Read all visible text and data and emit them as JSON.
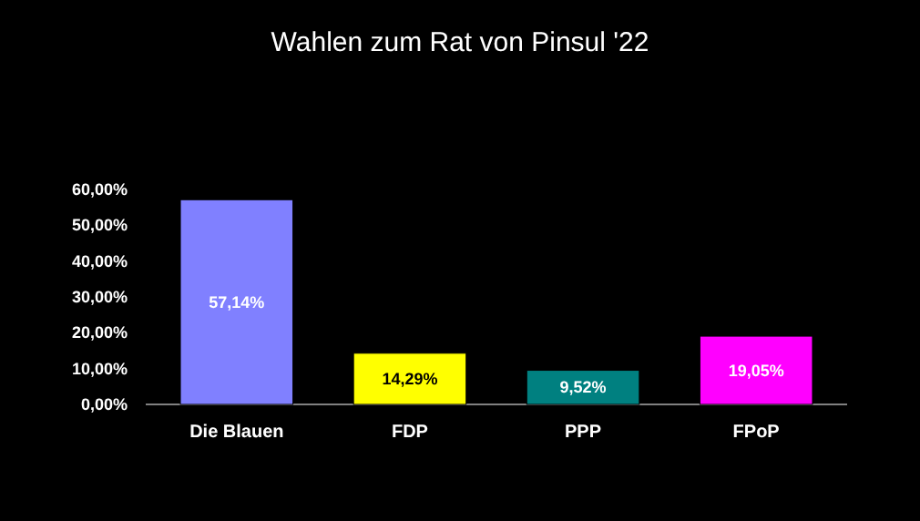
{
  "chart_data": {
    "type": "bar",
    "title": "Wahlen zum Rat von Pinsul '22",
    "categories": [
      "Die Blauen",
      "FDP",
      "PPP",
      "FPoP"
    ],
    "values": [
      57.14,
      14.29,
      9.52,
      19.05
    ],
    "colors": [
      "#8080ff",
      "#ffff00",
      "#008080",
      "#ff00ff"
    ],
    "value_labels": [
      "57,14%",
      "14,29%",
      "9,52%",
      "19,05%"
    ],
    "ylim": [
      0,
      60
    ],
    "yticks": [
      {
        "value": 0,
        "label": "0,00%"
      },
      {
        "value": 10,
        "label": "10,00%"
      },
      {
        "value": 20,
        "label": "20,00%"
      },
      {
        "value": 30,
        "label": "30,00%"
      },
      {
        "value": 40,
        "label": "40,00%"
      },
      {
        "value": 50,
        "label": "50,00%"
      },
      {
        "value": 60,
        "label": "60,00%"
      }
    ],
    "grid": false
  }
}
